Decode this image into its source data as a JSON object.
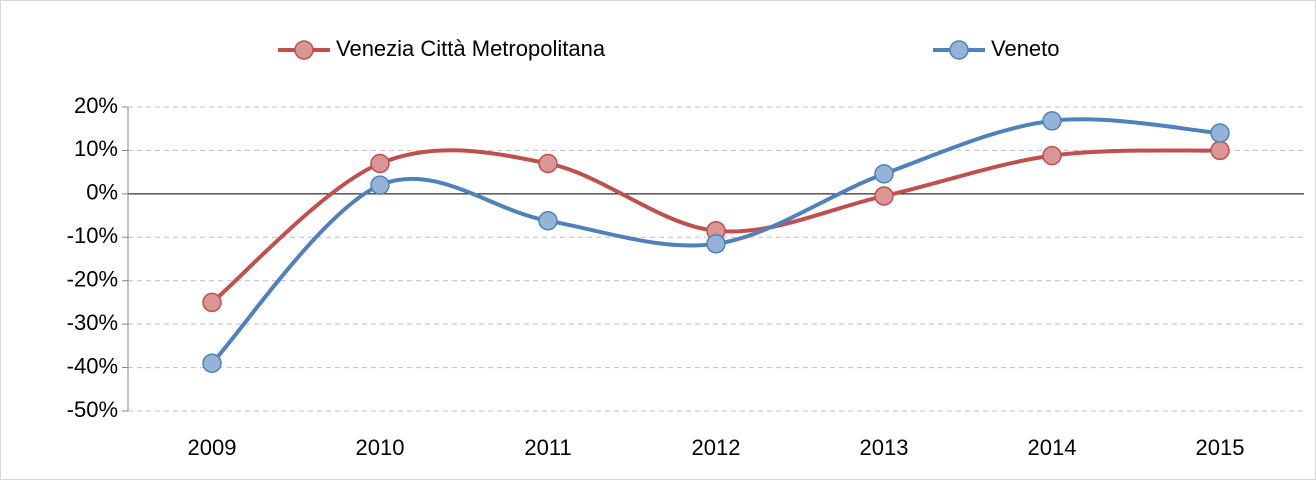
{
  "chart_data": {
    "type": "line",
    "categories": [
      "2009",
      "2010",
      "2011",
      "2012",
      "2013",
      "2014",
      "2015"
    ],
    "series": [
      {
        "name": "Venezia Città Metropolitana",
        "color": "#c0504d",
        "marker_color": "#d99694",
        "values": [
          -25,
          7,
          7,
          -8.5,
          -0.5,
          8.8,
          10
        ]
      },
      {
        "name": "Veneto",
        "color": "#4f81bd",
        "marker_color": "#95b3d7",
        "values": [
          -39,
          2,
          -6.2,
          -11.5,
          4.6,
          16.8,
          14
        ]
      }
    ],
    "ylim": [
      -50,
      20
    ],
    "yticks": [
      {
        "value": -50,
        "label": "-50%"
      },
      {
        "value": -40,
        "label": "-40%"
      },
      {
        "value": -30,
        "label": "-30%"
      },
      {
        "value": -20,
        "label": "-20%"
      },
      {
        "value": -10,
        "label": "-10%"
      },
      {
        "value": 0,
        "label": "0%"
      },
      {
        "value": 10,
        "label": "10%"
      },
      {
        "value": 20,
        "label": "20%"
      }
    ],
    "grid": true,
    "smooth": true,
    "legend": "top"
  }
}
